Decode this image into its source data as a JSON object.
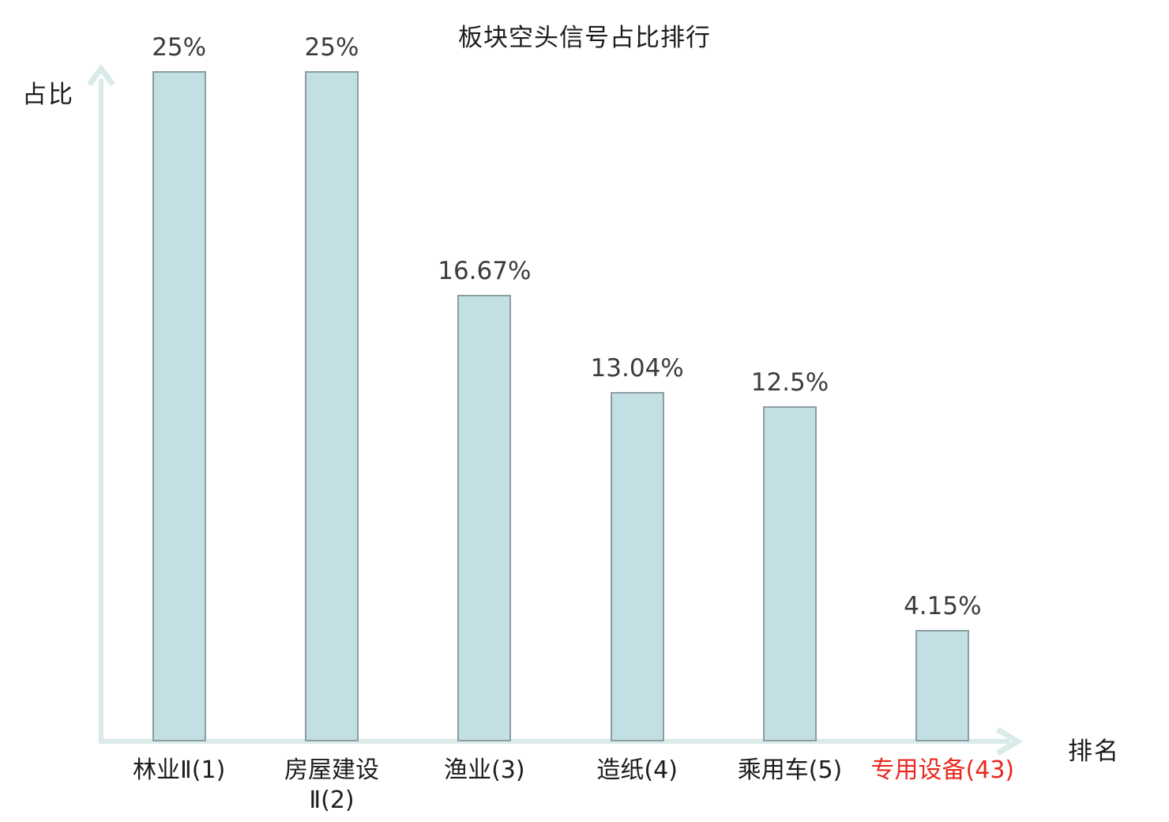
{
  "chart_data": {
    "type": "bar",
    "title": "板块空头信号占比排行",
    "xlabel": "排名",
    "ylabel": "占比",
    "categories": [
      "林业Ⅱ(1)",
      "房屋建设\nⅡ(2)",
      "渔业(3)",
      "造纸(4)",
      "乘用车(5)",
      "专用设备(43)"
    ],
    "values": [
      25,
      25,
      16.67,
      13.04,
      12.5,
      4.15
    ],
    "value_labels": [
      "25%",
      "25%",
      "16.67%",
      "13.04%",
      "12.5%",
      "4.15%"
    ],
    "ylim": [
      0,
      25
    ],
    "grid": "off",
    "legend": "none",
    "highlight_index": 5,
    "colors": {
      "bar_fill": "#c2dfe3",
      "bar_border": "#8b9da1",
      "axis": "#d9eae8",
      "value_label": "#3c3c3c",
      "text": "#1c1c1c",
      "highlight_category": "#e8281e"
    }
  }
}
